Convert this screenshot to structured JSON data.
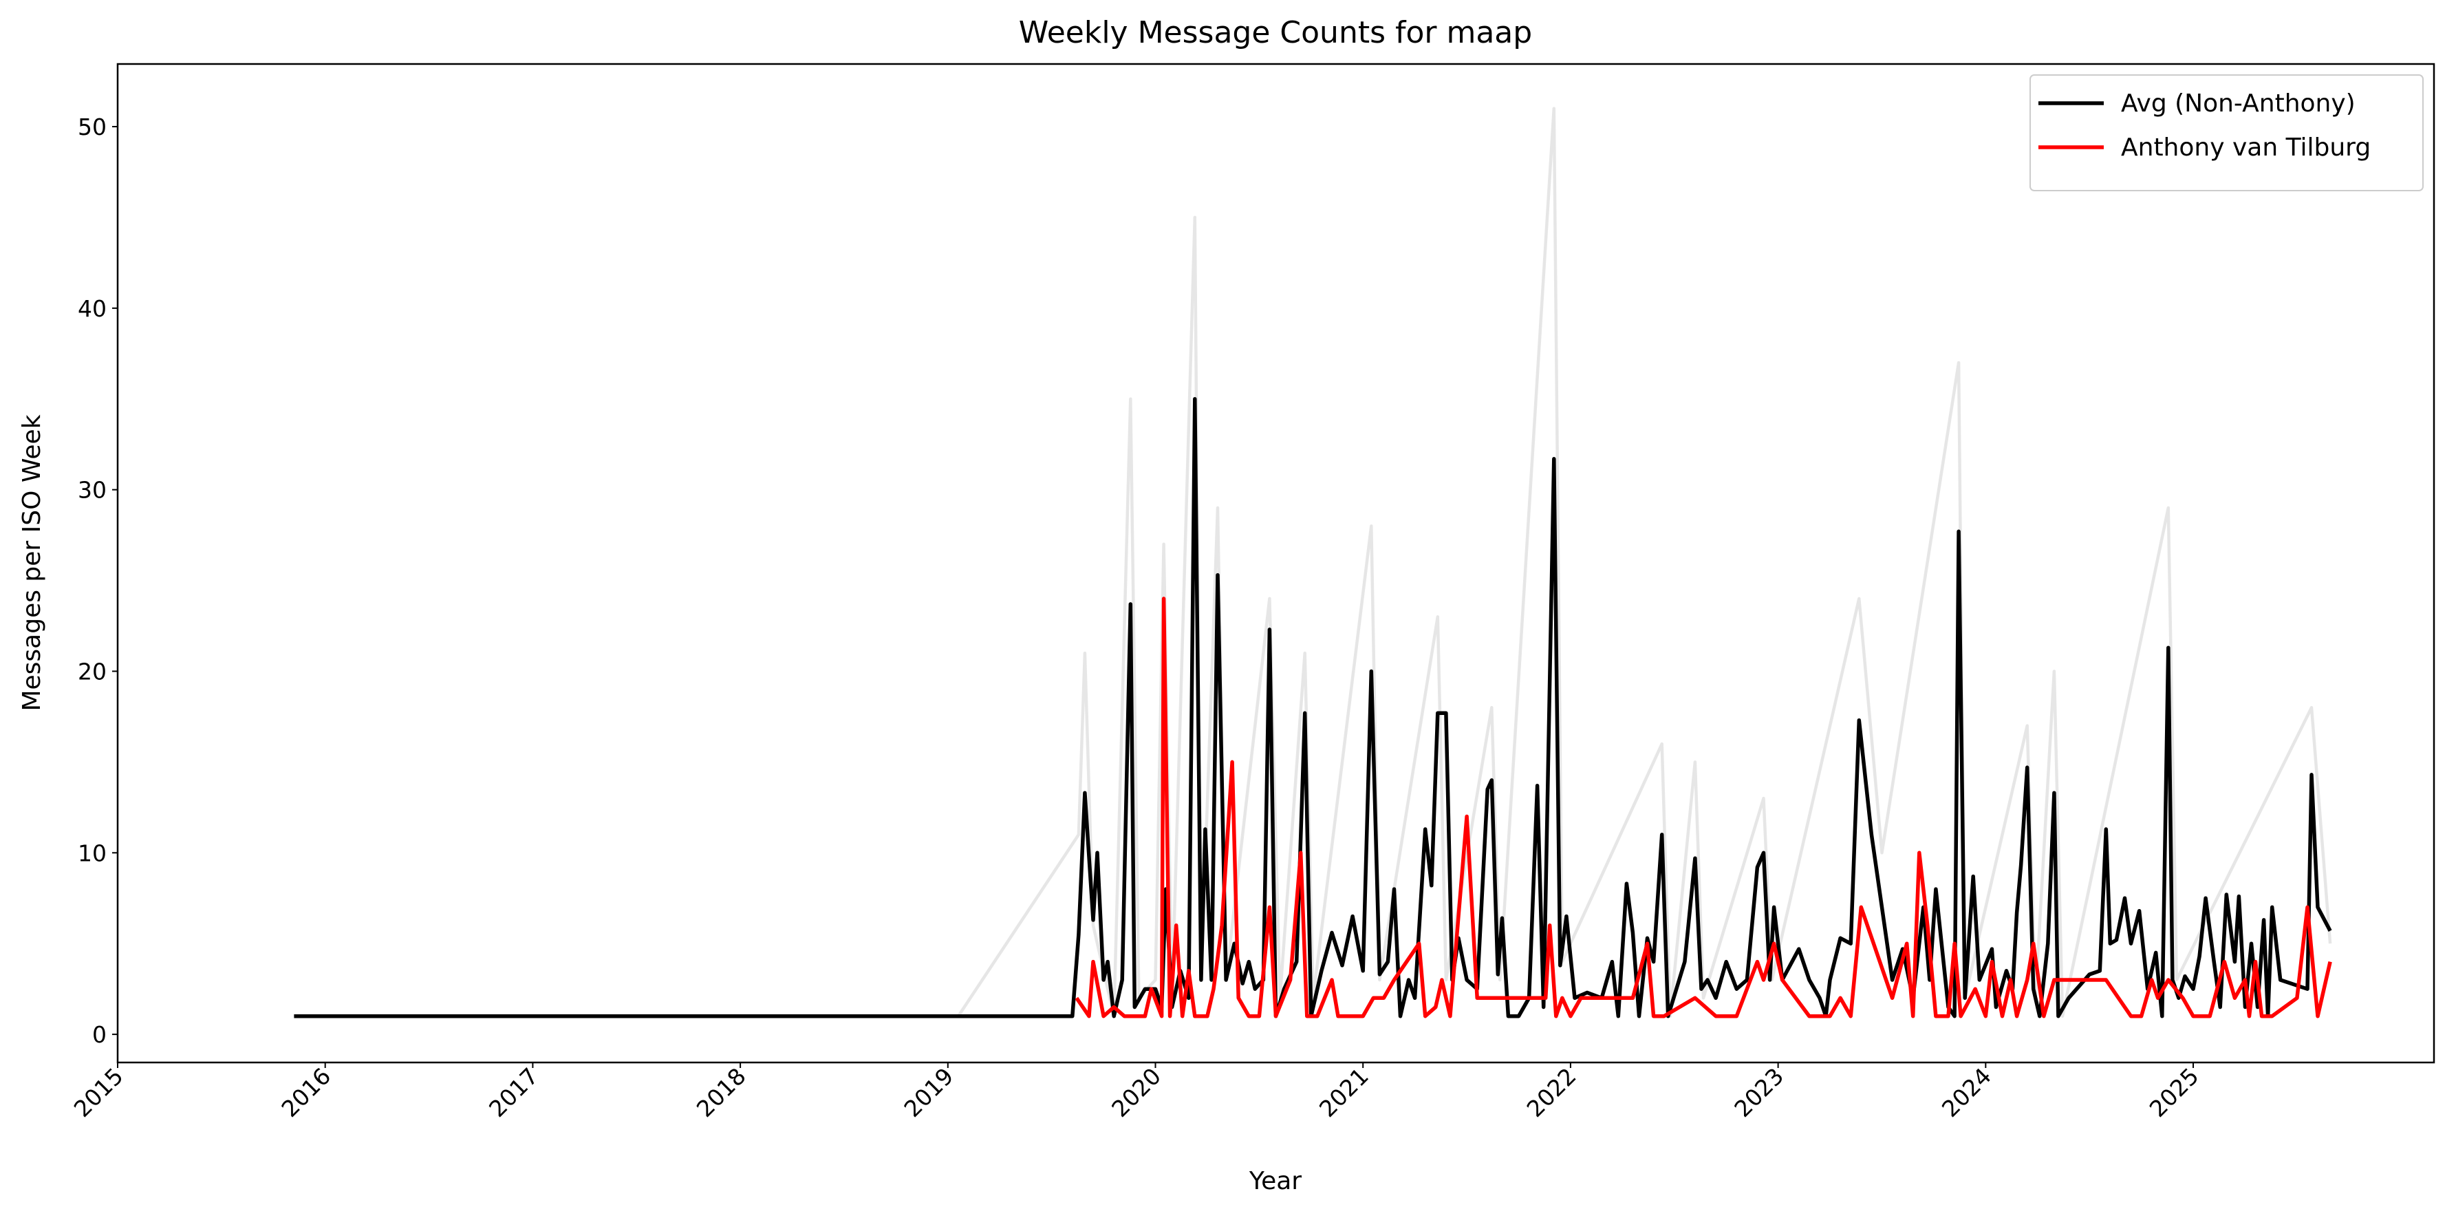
{
  "chart_data": {
    "type": "line",
    "title": "Weekly Message Counts for maap",
    "x_label": "Year",
    "y_label": "Messages per ISO Week",
    "xlim": [
      2015,
      2026.16
    ],
    "ylim": [
      -1.55,
      53.45
    ],
    "xticks": [
      2015,
      2016,
      2017,
      2018,
      2019,
      2020,
      2021,
      2022,
      2023,
      2024,
      2025
    ],
    "yticks": [
      0,
      10,
      20,
      30,
      40,
      50
    ],
    "legend": "upper right",
    "series": [
      {
        "color": "#e6e6e6",
        "x": [
          2019.05,
          2019.63,
          2019.66,
          2019.7,
          2019.8,
          2019.88,
          2019.92,
          2020.0,
          2020.04,
          2020.08,
          2020.19,
          2020.22,
          2020.3,
          2020.34,
          2020.55,
          2020.6,
          2020.72,
          2020.76,
          2021.04,
          2021.08,
          2021.36,
          2021.4,
          2021.62,
          2021.66,
          2021.92,
          2021.96,
          2022.44,
          2022.48,
          2022.6,
          2022.64,
          2022.93,
          2022.97,
          2023.39,
          2023.5,
          2023.87,
          2023.9,
          2024.2,
          2024.24,
          2024.33,
          2024.37,
          2024.88,
          2024.92,
          2025.57,
          2025.66
        ],
        "values": [
          1,
          11,
          21,
          6,
          1,
          35,
          2,
          3,
          27,
          2,
          45,
          3,
          29,
          3,
          24,
          2,
          21,
          2,
          28,
          3,
          23,
          3,
          18,
          3,
          51,
          4,
          16,
          1,
          15,
          2,
          13,
          3,
          24,
          10,
          37,
          2,
          17,
          2,
          20,
          1,
          29,
          3,
          18,
          5
        ]
      },
      {
        "name": "Avg (Non-Anthony)",
        "color": "#000000",
        "x": [
          2015.85,
          2019.6,
          2019.63,
          2019.66,
          2019.7,
          2019.72,
          2019.75,
          2019.77,
          2019.8,
          2019.84,
          2019.88,
          2019.9,
          2019.95,
          2020.0,
          2020.03,
          2020.05,
          2020.08,
          2020.12,
          2020.16,
          2020.19,
          2020.22,
          2020.24,
          2020.27,
          2020.3,
          2020.34,
          2020.38,
          2020.42,
          2020.45,
          2020.48,
          2020.52,
          2020.55,
          2020.58,
          2020.62,
          2020.68,
          2020.72,
          2020.75,
          2020.8,
          2020.85,
          2020.9,
          2020.95,
          2021.0,
          2021.04,
          2021.08,
          2021.12,
          2021.15,
          2021.18,
          2021.22,
          2021.25,
          2021.3,
          2021.33,
          2021.36,
          2021.4,
          2021.43,
          2021.46,
          2021.5,
          2021.55,
          2021.6,
          2021.62,
          2021.65,
          2021.67,
          2021.7,
          2021.75,
          2021.8,
          2021.84,
          2021.87,
          2021.92,
          2021.95,
          2021.98,
          2022.02,
          2022.08,
          2022.15,
          2022.2,
          2022.23,
          2022.27,
          2022.3,
          2022.33,
          2022.37,
          2022.4,
          2022.44,
          2022.47,
          2022.55,
          2022.6,
          2022.63,
          2022.66,
          2022.7,
          2022.75,
          2022.8,
          2022.85,
          2022.9,
          2022.93,
          2022.96,
          2022.98,
          2023.02,
          2023.1,
          2023.15,
          2023.2,
          2023.23,
          2023.25,
          2023.3,
          2023.35,
          2023.39,
          2023.45,
          2023.55,
          2023.6,
          2023.65,
          2023.7,
          2023.73,
          2023.76,
          2023.82,
          2023.85,
          2023.87,
          2023.9,
          2023.94,
          2023.97,
          2024.03,
          2024.05,
          2024.1,
          2024.13,
          2024.15,
          2024.17,
          2024.2,
          2024.23,
          2024.26,
          2024.3,
          2024.33,
          2024.35,
          2024.4,
          2024.5,
          2024.55,
          2024.58,
          2024.6,
          2024.63,
          2024.67,
          2024.7,
          2024.74,
          2024.78,
          2024.82,
          2024.85,
          2024.88,
          2024.9,
          2024.93,
          2024.96,
          2025.0,
          2025.03,
          2025.06,
          2025.1,
          2025.13,
          2025.16,
          2025.2,
          2025.22,
          2025.25,
          2025.28,
          2025.31,
          2025.34,
          2025.36,
          2025.38,
          2025.42,
          2025.55,
          2025.57,
          2025.6,
          2025.66
        ],
        "values": [
          1,
          1,
          5.5,
          13.3,
          6.3,
          10,
          3,
          4,
          1,
          3,
          23.7,
          1.5,
          2.5,
          2.5,
          1.5,
          8,
          1.5,
          3.5,
          2,
          35,
          3,
          11.3,
          3,
          25.3,
          3,
          5,
          2.8,
          4,
          2.5,
          3,
          22.3,
          1,
          2.5,
          4,
          17.7,
          1,
          3.5,
          5.6,
          3.8,
          6.5,
          3.5,
          20,
          3.3,
          4,
          8,
          1,
          3,
          2,
          11.3,
          8.2,
          17.7,
          17.7,
          3,
          5.3,
          3,
          2.5,
          13.5,
          14,
          3.3,
          6.4,
          1,
          1,
          2,
          13.7,
          1.5,
          31.7,
          3.8,
          6.5,
          2,
          2.3,
          2,
          4,
          1,
          8.3,
          5.6,
          1,
          5.3,
          4,
          11,
          1,
          4,
          9.7,
          2.5,
          3,
          2,
          4,
          2.5,
          3,
          9.2,
          10,
          3,
          7,
          3,
          4.7,
          3,
          2,
          1,
          3,
          5.3,
          5,
          17.3,
          11,
          3,
          4.7,
          2,
          7,
          3,
          8,
          1.5,
          1,
          27.7,
          2,
          8.7,
          3,
          4.7,
          1.5,
          3.5,
          2.5,
          6.7,
          9.3,
          14.7,
          2.5,
          1,
          5,
          13.3,
          1,
          2,
          3.3,
          3.5,
          11.3,
          5,
          5.2,
          7.5,
          5,
          6.8,
          2.5,
          4.5,
          1,
          21.3,
          3,
          2,
          3.2,
          2.5,
          4.3,
          7.5,
          4,
          1.5,
          7.7,
          4,
          7.6,
          1.5,
          5,
          1.5,
          6.3,
          1,
          7,
          3,
          2.5,
          14.3,
          7,
          5.7
        ]
      },
      {
        "name": "Anthony van Tilburg",
        "color": "#ff0000",
        "x": [
          2019.62,
          2019.68,
          2019.7,
          2019.75,
          2019.8,
          2019.85,
          2019.95,
          2019.98,
          2020.03,
          2020.04,
          2020.07,
          2020.1,
          2020.13,
          2020.16,
          2020.19,
          2020.25,
          2020.28,
          2020.32,
          2020.37,
          2020.4,
          2020.45,
          2020.5,
          2020.55,
          2020.58,
          2020.65,
          2020.7,
          2020.73,
          2020.78,
          2020.85,
          2020.88,
          2021.0,
          2021.05,
          2021.1,
          2021.15,
          2021.27,
          2021.3,
          2021.35,
          2021.38,
          2021.42,
          2021.5,
          2021.55,
          2021.6,
          2021.7,
          2021.8,
          2021.88,
          2021.9,
          2021.93,
          2021.96,
          2022.0,
          2022.05,
          2022.3,
          2022.37,
          2022.4,
          2022.45,
          2022.6,
          2022.7,
          2022.8,
          2022.9,
          2022.93,
          2022.98,
          2023.02,
          2023.15,
          2023.25,
          2023.3,
          2023.35,
          2023.4,
          2023.55,
          2023.62,
          2023.65,
          2023.68,
          2023.72,
          2023.76,
          2023.82,
          2023.85,
          2023.88,
          2023.95,
          2024.0,
          2024.03,
          2024.08,
          2024.12,
          2024.15,
          2024.2,
          2024.23,
          2024.28,
          2024.33,
          2024.58,
          2024.7,
          2024.75,
          2024.8,
          2024.83,
          2024.88,
          2024.95,
          2025.0,
          2025.08,
          2025.15,
          2025.2,
          2025.25,
          2025.27,
          2025.3,
          2025.33,
          2025.38,
          2025.5,
          2025.55,
          2025.6,
          2025.66
        ],
        "values": [
          2,
          1,
          4,
          1,
          1.5,
          1,
          1,
          2.5,
          1,
          24,
          1,
          6,
          1,
          3.5,
          1,
          1,
          2.5,
          6,
          15,
          2,
          1,
          1,
          7,
          1,
          3,
          10,
          1,
          1,
          3,
          1,
          1,
          2,
          2,
          3,
          5,
          1,
          1.5,
          3,
          1,
          12,
          2,
          2,
          2,
          2,
          2,
          6,
          1,
          2,
          1,
          2,
          2,
          5,
          1,
          1,
          2,
          1,
          1,
          4,
          3,
          5,
          3,
          1,
          1,
          2,
          1,
          7,
          2,
          5,
          1,
          10,
          6,
          1,
          1,
          5,
          1,
          2.5,
          1,
          4,
          1,
          3,
          1,
          3,
          5,
          1,
          3,
          3,
          1,
          1,
          3,
          2,
          3,
          2,
          1,
          1,
          4,
          2,
          3,
          1,
          4,
          1,
          1,
          2,
          7,
          1,
          4
        ]
      }
    ]
  }
}
